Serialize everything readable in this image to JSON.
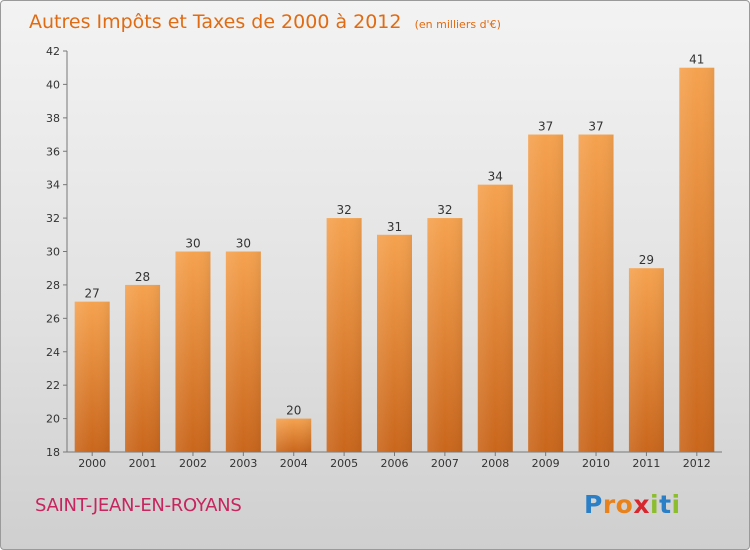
{
  "chart_data": {
    "type": "bar",
    "title": "Autres Impôts et Taxes de 2000 à 2012",
    "subtitle": "(en milliers d'€)",
    "categories": [
      "2000",
      "2001",
      "2002",
      "2003",
      "2004",
      "2005",
      "2006",
      "2007",
      "2008",
      "2009",
      "2010",
      "2011",
      "2012"
    ],
    "values": [
      27,
      28,
      30,
      30,
      20,
      32,
      31,
      32,
      34,
      37,
      37,
      29,
      41
    ],
    "ylim": [
      18,
      42
    ],
    "yticks": [
      18,
      20,
      22,
      24,
      26,
      28,
      30,
      32,
      34,
      36,
      38,
      40,
      42
    ],
    "xlabel": "",
    "ylabel": "",
    "grid": false,
    "bar_color_top": "#f5a24f",
    "bar_color_bottom": "#c9661c"
  },
  "footer": {
    "commune": "SAINT-JEAN-EN-ROYANS",
    "brand_letters": [
      {
        "ch": "P",
        "color": "#2a7fc6"
      },
      {
        "ch": "r",
        "color": "#e8821c"
      },
      {
        "ch": "o",
        "color": "#e8821c"
      },
      {
        "ch": "x",
        "color": "#d8262d"
      },
      {
        "ch": "i",
        "color": "#8cbd2c"
      },
      {
        "ch": "t",
        "color": "#2a7fc6"
      },
      {
        "ch": "i",
        "color": "#8cbd2c"
      }
    ],
    "commune_color": "#c8245e"
  }
}
